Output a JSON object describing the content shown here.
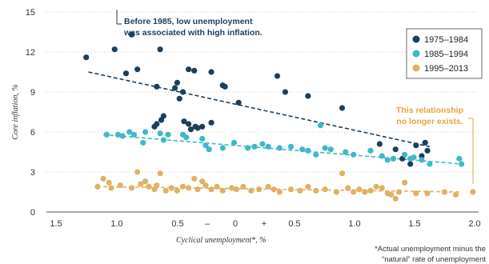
{
  "chart_data": {
    "type": "scatter",
    "xlabel": "Cyclical unemployment*, %",
    "ylabel": "Core inflation, %",
    "xlim": [
      1.75,
      -2.05
    ],
    "ylim": [
      0,
      15
    ],
    "x_reversed": true,
    "x_ticks": [
      1.5,
      1.0,
      0.5,
      0,
      -0.5,
      -1.0,
      -1.5,
      -2.0
    ],
    "x_tick_labels": [
      "1.5",
      "1.0",
      "0.5",
      "–",
      "0",
      "+",
      "0.5",
      "1.0",
      "1.5",
      "2.0"
    ],
    "y_ticks": [
      0,
      3,
      6,
      9,
      12,
      15
    ],
    "grid": true,
    "legend_position": "top-right",
    "annotations": [
      {
        "text_lines": [
          "Before 1985, low unemployment",
          "was associated with high inflation."
        ],
        "color": "#1a3d5c"
      },
      {
        "text_lines": [
          "This relationship",
          "no longer exists."
        ],
        "color": "#e8a23c"
      }
    ],
    "footnote_lines": [
      "*Actual unemployment minus the",
      "“natural” rate of unemployment"
    ],
    "series": [
      {
        "name": "1975–1984",
        "color": "#1c3f5a",
        "points": [
          [
            1.4,
            11.6
          ],
          [
            1.15,
            12.2
          ],
          [
            1.0,
            13.3
          ],
          [
            1.05,
            10.4
          ],
          [
            0.95,
            10.7
          ],
          [
            0.75,
            12.2
          ],
          [
            0.78,
            9.4
          ],
          [
            0.62,
            9.3
          ],
          [
            0.6,
            9.7
          ],
          [
            0.58,
            8.5
          ],
          [
            0.55,
            9.0
          ],
          [
            0.5,
            10.7
          ],
          [
            0.45,
            10.6
          ],
          [
            0.3,
            10.5
          ],
          [
            0.2,
            9.5
          ],
          [
            0.18,
            9.4
          ],
          [
            0.72,
            7.2
          ],
          [
            0.74,
            6.9
          ],
          [
            0.78,
            6.6
          ],
          [
            0.8,
            6.4
          ],
          [
            0.54,
            6.8
          ],
          [
            0.5,
            6.6
          ],
          [
            0.48,
            6.2
          ],
          [
            0.44,
            6.4
          ],
          [
            0.42,
            6.3
          ],
          [
            0.38,
            6.4
          ],
          [
            0.3,
            6.7
          ],
          [
            0.06,
            8.2
          ],
          [
            -0.28,
            10.2
          ],
          [
            -0.35,
            9.0
          ],
          [
            -0.55,
            8.7
          ],
          [
            -0.85,
            7.8
          ],
          [
            -1.18,
            5.1
          ],
          [
            -1.32,
            4.7
          ],
          [
            -1.38,
            4.0
          ],
          [
            -1.45,
            3.6
          ],
          [
            -1.5,
            5.0
          ],
          [
            -1.55,
            4.2
          ],
          [
            -1.58,
            5.2
          ],
          [
            -1.6,
            4.6
          ]
        ]
      },
      {
        "name": "1985–1994",
        "color": "#3fb8c8",
        "points": [
          [
            1.22,
            5.8
          ],
          [
            1.12,
            5.8
          ],
          [
            1.08,
            5.7
          ],
          [
            1.02,
            6.0
          ],
          [
            0.98,
            5.8
          ],
          [
            0.9,
            5.2
          ],
          [
            0.88,
            6.0
          ],
          [
            0.75,
            5.9
          ],
          [
            0.72,
            5.4
          ],
          [
            0.68,
            5.8
          ],
          [
            0.55,
            5.8
          ],
          [
            0.52,
            5.6
          ],
          [
            0.38,
            5.5
          ],
          [
            0.35,
            5.0
          ],
          [
            0.32,
            4.7
          ],
          [
            0.2,
            4.8
          ],
          [
            0.1,
            5.2
          ],
          [
            -0.02,
            4.8
          ],
          [
            -0.08,
            4.9
          ],
          [
            -0.15,
            5.1
          ],
          [
            -0.2,
            4.9
          ],
          [
            -0.3,
            4.8
          ],
          [
            -0.4,
            4.9
          ],
          [
            -0.5,
            4.7
          ],
          [
            -0.55,
            4.6
          ],
          [
            -0.62,
            4.3
          ],
          [
            -0.66,
            6.5
          ],
          [
            -0.7,
            4.8
          ],
          [
            -0.75,
            4.7
          ],
          [
            -0.88,
            4.5
          ],
          [
            -0.95,
            4.3
          ],
          [
            -1.1,
            4.6
          ],
          [
            -1.2,
            4.2
          ],
          [
            -1.25,
            3.9
          ],
          [
            -1.3,
            4.0
          ],
          [
            -1.4,
            4.3
          ],
          [
            -1.45,
            4.0
          ],
          [
            -1.48,
            4.1
          ],
          [
            -1.55,
            3.9
          ],
          [
            -1.62,
            3.6
          ],
          [
            -1.88,
            4.0
          ],
          [
            -1.9,
            3.6
          ]
        ]
      },
      {
        "name": "1995–2013",
        "color": "#e2b063",
        "points": [
          [
            1.3,
            1.9
          ],
          [
            1.25,
            2.5
          ],
          [
            1.2,
            2.2
          ],
          [
            1.18,
            1.8
          ],
          [
            1.1,
            2.0
          ],
          [
            1.0,
            1.8
          ],
          [
            0.95,
            3.0
          ],
          [
            0.92,
            2.1
          ],
          [
            0.88,
            2.3
          ],
          [
            0.85,
            1.9
          ],
          [
            0.8,
            1.7
          ],
          [
            0.78,
            2.0
          ],
          [
            0.75,
            2.9
          ],
          [
            0.7,
            1.6
          ],
          [
            0.65,
            1.8
          ],
          [
            0.6,
            1.6
          ],
          [
            0.55,
            1.9
          ],
          [
            0.5,
            1.8
          ],
          [
            0.45,
            2.5
          ],
          [
            0.42,
            1.7
          ],
          [
            0.38,
            2.3
          ],
          [
            0.35,
            2.0
          ],
          [
            0.3,
            1.7
          ],
          [
            0.25,
            1.9
          ],
          [
            0.2,
            1.6
          ],
          [
            0.12,
            1.8
          ],
          [
            0.08,
            1.7
          ],
          [
            0.02,
            1.9
          ],
          [
            -0.05,
            1.6
          ],
          [
            -0.12,
            1.7
          ],
          [
            -0.2,
            1.9
          ],
          [
            -0.25,
            1.7
          ],
          [
            -0.3,
            1.5
          ],
          [
            -0.4,
            1.7
          ],
          [
            -0.48,
            1.6
          ],
          [
            -0.55,
            1.9
          ],
          [
            -0.62,
            1.6
          ],
          [
            -0.7,
            1.7
          ],
          [
            -0.8,
            1.5
          ],
          [
            -0.85,
            2.9
          ],
          [
            -0.9,
            1.8
          ],
          [
            -0.95,
            1.5
          ],
          [
            -1.0,
            1.7
          ],
          [
            -1.05,
            1.5
          ],
          [
            -1.1,
            1.6
          ],
          [
            -1.15,
            1.9
          ],
          [
            -1.2,
            1.8
          ],
          [
            -1.25,
            1.4
          ],
          [
            -1.28,
            1.3
          ],
          [
            -1.32,
            1.0
          ],
          [
            -1.35,
            1.5
          ],
          [
            -1.4,
            2.2
          ],
          [
            -1.5,
            1.4
          ],
          [
            -1.6,
            1.4
          ],
          [
            -1.75,
            1.5
          ],
          [
            -1.85,
            1.3
          ],
          [
            -2.0,
            1.5
          ]
        ]
      }
    ],
    "trend_lines": [
      {
        "series": "1975–1984",
        "from": [
          1.38,
          10.5
        ],
        "to": [
          -1.62,
          4.9
        ]
      },
      {
        "series": "1985–1994",
        "from": [
          1.25,
          5.8
        ],
        "to": [
          -1.9,
          3.6
        ]
      },
      {
        "series": "1995–2013",
        "from": [
          1.25,
          1.9
        ],
        "to": [
          -1.9,
          1.5
        ]
      }
    ]
  }
}
